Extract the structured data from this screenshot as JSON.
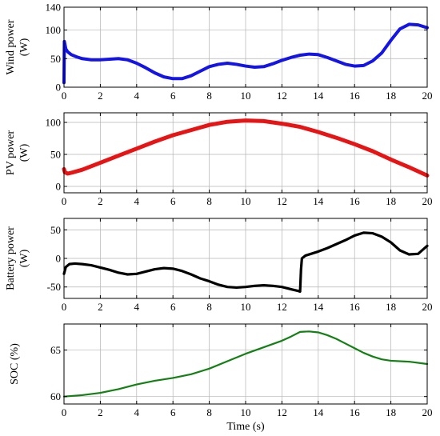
{
  "chart_data": [
    {
      "type": "line",
      "ylabel_lines": [
        "Wind power",
        "(W)"
      ],
      "xlabel": "",
      "xlim": [
        0,
        20
      ],
      "ylim": [
        0,
        140
      ],
      "xticks": [
        0,
        2,
        4,
        6,
        8,
        10,
        12,
        14,
        16,
        18,
        20
      ],
      "yticks": [
        0,
        50,
        100,
        140
      ],
      "grid": true,
      "series": [
        {
          "color": "#1414e6",
          "x": [
            0,
            0.02,
            0.1,
            0.2,
            0.4,
            0.7,
            1.0,
            1.5,
            2.0,
            2.5,
            3.0,
            3.5,
            4.0,
            4.5,
            5.0,
            5.5,
            6.0,
            6.5,
            7.0,
            7.5,
            8.0,
            8.5,
            9.0,
            9.5,
            10.0,
            10.5,
            11.0,
            11.5,
            12.0,
            12.5,
            13.0,
            13.5,
            14.0,
            14.5,
            15.0,
            15.5,
            16.0,
            16.5,
            17.0,
            17.5,
            18.0,
            18.5,
            19.0,
            19.5,
            20.0
          ],
          "y": [
            8,
            80,
            67,
            62,
            57,
            53,
            50,
            48,
            48,
            49,
            50,
            48,
            42,
            34,
            25,
            18,
            15,
            15,
            20,
            28,
            36,
            40,
            42,
            40,
            37,
            35,
            36,
            41,
            47,
            52,
            56,
            58,
            57,
            52,
            46,
            40,
            37,
            38,
            46,
            60,
            82,
            102,
            110,
            109,
            104
          ]
        }
      ]
    },
    {
      "type": "line",
      "ylabel_lines": [
        "PV power",
        "(W)"
      ],
      "xlabel": "",
      "xlim": [
        0,
        20
      ],
      "ylim": [
        -10,
        115
      ],
      "xticks": [
        0,
        2,
        4,
        6,
        8,
        10,
        12,
        14,
        16,
        18,
        20
      ],
      "yticks": [
        0,
        50,
        100
      ],
      "grid": true,
      "series": [
        {
          "color": "#e61414",
          "x": [
            0,
            0.05,
            0.2,
            0.5,
            1,
            2,
            3,
            4,
            5,
            6,
            7,
            8,
            9,
            10,
            11,
            12,
            13,
            14,
            15,
            16,
            17,
            18,
            19,
            20
          ],
          "y": [
            27,
            22,
            20,
            22,
            26,
            37,
            48,
            59,
            70,
            80,
            88,
            96,
            101,
            103,
            102,
            98,
            93,
            85,
            76,
            66,
            55,
            42,
            30,
            17
          ]
        }
      ]
    },
    {
      "type": "line",
      "ylabel_lines": [
        "Battery power",
        "(W)"
      ],
      "xlabel": "",
      "xlim": [
        0,
        20
      ],
      "ylim": [
        -70,
        70
      ],
      "xticks": [
        0,
        2,
        4,
        6,
        8,
        10,
        12,
        14,
        16,
        18,
        20
      ],
      "yticks": [
        -50,
        0,
        50
      ],
      "grid": true,
      "series": [
        {
          "color": "#000000",
          "x": [
            0,
            0.1,
            0.3,
            0.6,
            1.0,
            1.5,
            2.0,
            2.5,
            3.0,
            3.5,
            4.0,
            4.5,
            5.0,
            5.5,
            6.0,
            6.5,
            7.0,
            7.5,
            8.0,
            8.5,
            9.0,
            9.5,
            10.0,
            10.5,
            11.0,
            11.5,
            12.0,
            12.5,
            12.9,
            13.0,
            13.05,
            13.1,
            13.3,
            13.6,
            14.0,
            14.5,
            15.0,
            15.5,
            16.0,
            16.5,
            17.0,
            17.5,
            18.0,
            18.5,
            19.0,
            19.5,
            20.0
          ],
          "y": [
            -27,
            -15,
            -10,
            -9,
            -10,
            -12,
            -16,
            -20,
            -25,
            -28,
            -27,
            -23,
            -19,
            -17,
            -18,
            -22,
            -28,
            -35,
            -40,
            -46,
            -50,
            -51,
            -50,
            -48,
            -47,
            -48,
            -50,
            -54,
            -57,
            -58,
            -20,
            0,
            5,
            8,
            12,
            18,
            25,
            32,
            40,
            45,
            44,
            38,
            28,
            14,
            7,
            8,
            22
          ]
        }
      ]
    },
    {
      "type": "line",
      "ylabel_lines": [
        "SOC (%)"
      ],
      "xlabel": "Time (s)",
      "xlim": [
        0,
        20
      ],
      "ylim": [
        59.2,
        67.8
      ],
      "xticks": [
        0,
        2,
        4,
        6,
        8,
        10,
        12,
        14,
        16,
        18,
        20
      ],
      "yticks": [
        60,
        65
      ],
      "grid": true,
      "series": [
        {
          "color": "#138013",
          "x": [
            0,
            1,
            2,
            3,
            4,
            5,
            6,
            7,
            8,
            9,
            10,
            11,
            12,
            12.5,
            13.0,
            13.5,
            14.0,
            14.5,
            15.0,
            15.5,
            16.0,
            16.5,
            17.0,
            17.5,
            18.0,
            19.0,
            20.0
          ],
          "y": [
            60.0,
            60.15,
            60.4,
            60.8,
            61.3,
            61.7,
            62.0,
            62.4,
            63.0,
            63.8,
            64.6,
            65.3,
            66.0,
            66.45,
            66.95,
            67.0,
            66.9,
            66.6,
            66.2,
            65.7,
            65.2,
            64.7,
            64.3,
            64.0,
            63.85,
            63.75,
            63.5
          ]
        }
      ]
    }
  ]
}
